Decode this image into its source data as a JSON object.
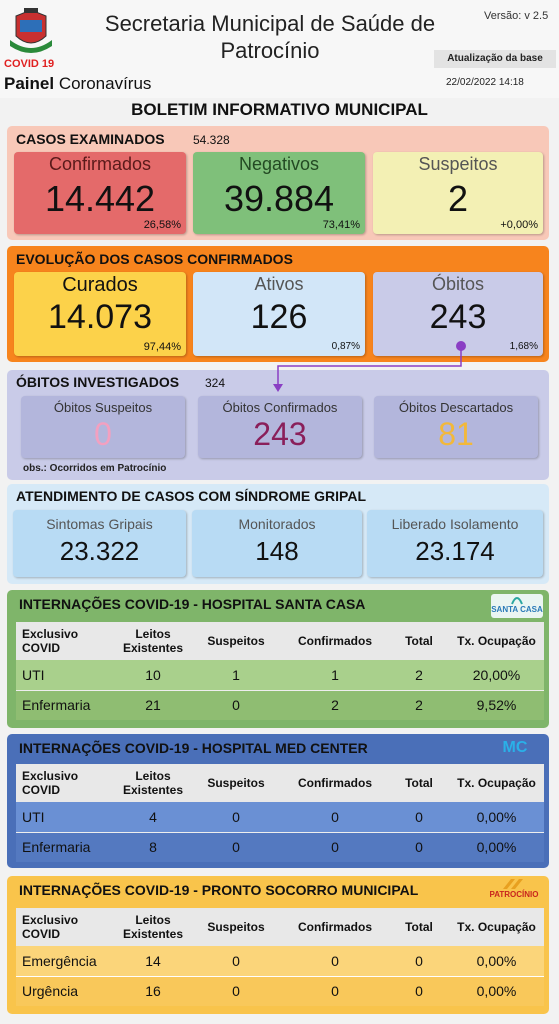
{
  "header": {
    "covid_tag": "COVID 19",
    "painel_bold": "Painel",
    "painel_rest": " Coronavírus",
    "title": "Secretaria Municipal de Saúde de Patrocínio",
    "version": "Versão: v 2.5",
    "update_label": "Atualização da base",
    "update_date": "22/02/2022 14:18"
  },
  "bulletin_title": "BOLETIM INFORMATIVO MUNICIPAL",
  "colors": {
    "casos_bg": "#f8c8b8",
    "evolucao_bg": "#f7841d",
    "obitos_bg": "#c9cbe8",
    "sindrome_bg": "#d6e9f7",
    "santa_casa": "#7fb56a",
    "med_center": "#4a6fb8",
    "pronto_socorro": "#f9c44b"
  },
  "casos": {
    "title": "CASOS EXAMINADOS",
    "total": "54.328",
    "confirmados": {
      "label": "Confirmados",
      "value": "14.442",
      "pct": "26,58%"
    },
    "negativos": {
      "label": "Negativos",
      "value": "39.884",
      "pct": "73,41%"
    },
    "suspeitos": {
      "label": "Suspeitos",
      "value": "2",
      "pct": "+0,00%"
    }
  },
  "evolucao": {
    "title": "EVOLUÇÃO DOS CASOS CONFIRMADOS",
    "curados": {
      "label": "Curados",
      "value": "14.073",
      "pct": "97,44%"
    },
    "ativos": {
      "label": "Ativos",
      "value": "126",
      "pct": "0,87%"
    },
    "obitos": {
      "label": "Óbitos",
      "value": "243",
      "pct": "1,68%"
    }
  },
  "investigados": {
    "title": "ÓBITOS INVESTIGADOS",
    "total": "324",
    "suspeitos": {
      "label": "Óbitos Suspeitos",
      "value": "0"
    },
    "confirmados": {
      "label": "Óbitos Confirmados",
      "value": "243"
    },
    "descartados": {
      "label": "Óbitos Descartados",
      "value": "81"
    },
    "obs": "obs.: Ocorridos em Patrocínio"
  },
  "sindrome": {
    "title": "ATENDIMENTO DE CASOS COM SÍNDROME GRIPAL",
    "sintomas": {
      "label": "Sintomas Gripais",
      "value": "23.322"
    },
    "monitorados": {
      "label": "Monitorados",
      "value": "148"
    },
    "liberado": {
      "label": "Liberado Isolamento",
      "value": "23.174"
    }
  },
  "santa_casa": {
    "title": "INTERNAÇÕES COVID-19 - HOSPITAL SANTA CASA",
    "logo_text": "SANTA CASA",
    "headers": [
      "Exclusivo COVID",
      "Leitos Existentes",
      "Suspeitos",
      "Confirmados",
      "Total",
      "Tx. Ocupação"
    ],
    "rows": [
      [
        "UTI",
        "10",
        "1",
        "1",
        "2",
        "20,00%"
      ],
      [
        "Enfermaria",
        "21",
        "0",
        "2",
        "2",
        "9,52%"
      ]
    ]
  },
  "med_center": {
    "title": "INTERNAÇÕES COVID-19 - HOSPITAL MED CENTER",
    "logo_text": "MC",
    "headers": [
      "Exclusivo COVID",
      "Leitos Existentes",
      "Suspeitos",
      "Confirmados",
      "Total",
      "Tx. Ocupação"
    ],
    "rows": [
      [
        "UTI",
        "4",
        "0",
        "0",
        "0",
        "0,00%"
      ],
      [
        "Enfermaria",
        "8",
        "0",
        "0",
        "0",
        "0,00%"
      ]
    ]
  },
  "pronto_socorro": {
    "title": "INTERNAÇÕES COVID-19 - PRONTO SOCORRO MUNICIPAL",
    "logo_text": "PATROCÍNIO",
    "headers": [
      "Exclusivo COVID",
      "Leitos Existentes",
      "Suspeitos",
      "Confirmados",
      "Total",
      "Tx. Ocupação"
    ],
    "rows": [
      [
        "Emergência",
        "14",
        "0",
        "0",
        "0",
        "0,00%"
      ],
      [
        "Urgência",
        "16",
        "0",
        "0",
        "0",
        "0,00%"
      ]
    ]
  }
}
